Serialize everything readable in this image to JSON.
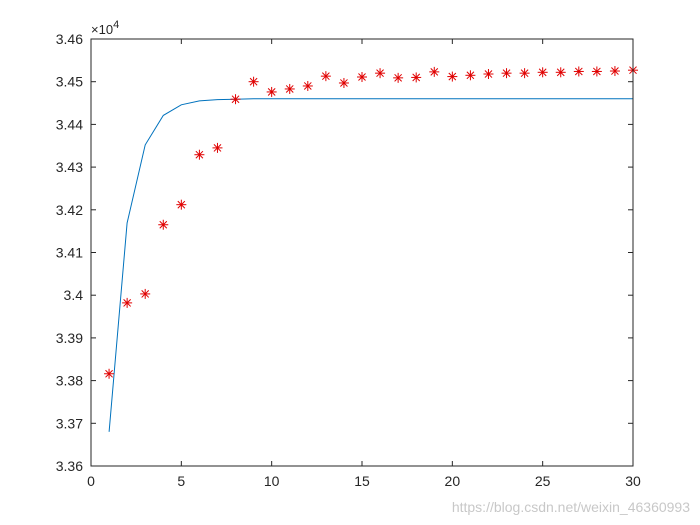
{
  "chart_data": {
    "type": "line",
    "title": "",
    "xlabel": "",
    "ylabel": "",
    "xlim": [
      0,
      30
    ],
    "ylim": [
      33600,
      34600
    ],
    "y_exponent_label": "×10",
    "y_exponent_power": "4",
    "x_tick_values": [
      0,
      5,
      10,
      15,
      20,
      25,
      30
    ],
    "x_tick_labels": [
      "0",
      "5",
      "10",
      "15",
      "20",
      "25",
      "30"
    ],
    "y_tick_values": [
      33600,
      33700,
      33800,
      33900,
      34000,
      34100,
      34200,
      34300,
      34400,
      34500,
      34600
    ],
    "y_tick_labels": [
      "3.36",
      "3.37",
      "3.38",
      "3.39",
      "3.4",
      "3.41",
      "3.42",
      "3.43",
      "3.44",
      "3.45",
      "3.46"
    ],
    "grid": false,
    "legend": "none",
    "series": [
      {
        "style": "line",
        "color": "#0072BD",
        "x": [
          1,
          2,
          3,
          4,
          5,
          6,
          7,
          8,
          9,
          10,
          11,
          12,
          13,
          14,
          15,
          16,
          17,
          18,
          19,
          20,
          21,
          22,
          23,
          24,
          25,
          26,
          27,
          28,
          29,
          30
        ],
        "y": [
          33680,
          34169,
          34352,
          34421,
          34446,
          34455,
          34458,
          34459,
          34460,
          34460,
          34460,
          34460,
          34460,
          34460,
          34460,
          34460,
          34460,
          34460,
          34460,
          34460,
          34460,
          34460,
          34460,
          34460,
          34460,
          34460,
          34460,
          34460,
          34460,
          34460
        ]
      },
      {
        "style": "marker",
        "marker": "*",
        "color": "#E00000",
        "x": [
          1,
          2,
          3,
          4,
          5,
          6,
          7,
          8,
          9,
          10,
          11,
          12,
          13,
          14,
          15,
          16,
          17,
          18,
          19,
          20,
          21,
          22,
          23,
          24,
          25,
          26,
          27,
          28,
          29,
          30
        ],
        "y": [
          33816,
          33982,
          34003,
          34165,
          34212,
          34329,
          34345,
          34459,
          34500,
          34476,
          34483,
          34490,
          34513,
          34497,
          34511,
          34520,
          34509,
          34510,
          34523,
          34512,
          34515,
          34518,
          34520,
          34520,
          34522,
          34522,
          34524,
          34524,
          34525,
          34527
        ]
      }
    ]
  },
  "watermark": "https://blog.csdn.net/weixin_46360993"
}
